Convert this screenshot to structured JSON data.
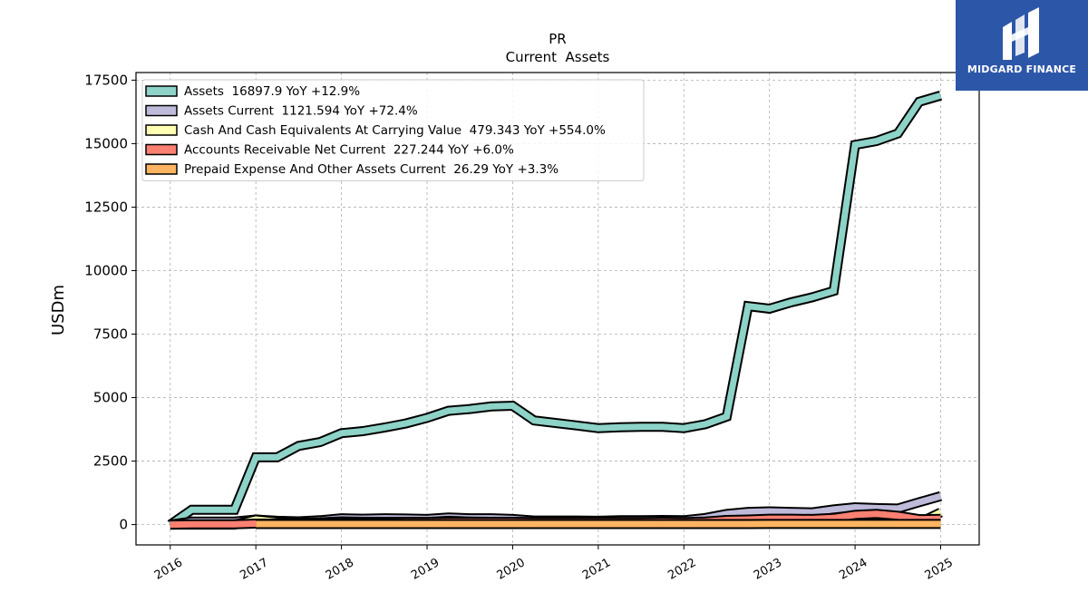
{
  "brand": {
    "name": "MIDGARD FINANCE",
    "bg_color": "#2c56a8"
  },
  "chart_data": {
    "type": "area",
    "title": "PR",
    "subtitle": "Current  Assets",
    "xlabel": "",
    "ylabel": "USDm",
    "ylim": [
      -800,
      17800
    ],
    "xlim": [
      2015.6,
      2025.45
    ],
    "yticks": [
      0,
      2500,
      5000,
      7500,
      10000,
      12500,
      15000,
      17500
    ],
    "xticks": [
      2016,
      2017,
      2018,
      2019,
      2020,
      2021,
      2022,
      2023,
      2024,
      2025
    ],
    "grid": true,
    "legend_position": "top-left",
    "series": [
      {
        "name": "Assets  16897.9 YoY +12.9%",
        "color": "#8dd3c7",
        "points": [
          [
            2016.0,
            0
          ],
          [
            2016.25,
            580
          ],
          [
            2016.5,
            580
          ],
          [
            2016.75,
            580
          ],
          [
            2017.0,
            2650
          ],
          [
            2017.25,
            2650
          ],
          [
            2017.5,
            3100
          ],
          [
            2017.75,
            3250
          ],
          [
            2018.0,
            3600
          ],
          [
            2018.25,
            3680
          ],
          [
            2018.5,
            3820
          ],
          [
            2018.75,
            3980
          ],
          [
            2019.0,
            4200
          ],
          [
            2019.25,
            4480
          ],
          [
            2019.5,
            4550
          ],
          [
            2019.75,
            4650
          ],
          [
            2020.0,
            4680
          ],
          [
            2020.25,
            4100
          ],
          [
            2020.5,
            4000
          ],
          [
            2020.75,
            3900
          ],
          [
            2021.0,
            3800
          ],
          [
            2021.25,
            3830
          ],
          [
            2021.5,
            3850
          ],
          [
            2021.75,
            3850
          ],
          [
            2022.0,
            3800
          ],
          [
            2022.25,
            3950
          ],
          [
            2022.5,
            4250
          ],
          [
            2022.75,
            8600
          ],
          [
            2023.0,
            8500
          ],
          [
            2023.25,
            8750
          ],
          [
            2023.5,
            8950
          ],
          [
            2023.75,
            9200
          ],
          [
            2024.0,
            14950
          ],
          [
            2024.25,
            15100
          ],
          [
            2024.5,
            15400
          ],
          [
            2024.75,
            16650
          ],
          [
            2025.0,
            16897.9
          ]
        ]
      },
      {
        "name": "Assets Current  1121.594 YoY +72.4%",
        "color": "#bebada",
        "points": [
          [
            2016.0,
            0
          ],
          [
            2016.25,
            120
          ],
          [
            2016.5,
            120
          ],
          [
            2016.75,
            120
          ],
          [
            2017.0,
            200
          ],
          [
            2017.25,
            150
          ],
          [
            2017.5,
            130
          ],
          [
            2017.75,
            170
          ],
          [
            2018.0,
            250
          ],
          [
            2018.25,
            230
          ],
          [
            2018.5,
            250
          ],
          [
            2018.75,
            240
          ],
          [
            2019.0,
            220
          ],
          [
            2019.25,
            280
          ],
          [
            2019.5,
            250
          ],
          [
            2019.75,
            250
          ],
          [
            2020.0,
            220
          ],
          [
            2020.25,
            160
          ],
          [
            2020.5,
            160
          ],
          [
            2020.75,
            160
          ],
          [
            2021.0,
            150
          ],
          [
            2021.25,
            170
          ],
          [
            2021.5,
            170
          ],
          [
            2021.75,
            180
          ],
          [
            2022.0,
            170
          ],
          [
            2022.25,
            260
          ],
          [
            2022.5,
            420
          ],
          [
            2022.75,
            500
          ],
          [
            2023.0,
            520
          ],
          [
            2023.25,
            500
          ],
          [
            2023.5,
            480
          ],
          [
            2023.75,
            600
          ],
          [
            2024.0,
            680
          ],
          [
            2024.25,
            650
          ],
          [
            2024.5,
            630
          ],
          [
            2024.75,
            880
          ],
          [
            2025.0,
            1121.594
          ]
        ]
      },
      {
        "name": "Cash And Cash Equivalents At Carrying Value  479.343 YoY +554.0%",
        "color": "#ffffb3",
        "points": [
          [
            2016.0,
            0
          ],
          [
            2016.25,
            0
          ],
          [
            2016.5,
            0
          ],
          [
            2016.75,
            0
          ],
          [
            2017.0,
            200
          ],
          [
            2017.25,
            110
          ],
          [
            2017.5,
            70
          ],
          [
            2017.75,
            90
          ],
          [
            2018.0,
            130
          ],
          [
            2018.25,
            110
          ],
          [
            2018.5,
            110
          ],
          [
            2018.75,
            110
          ],
          [
            2019.0,
            100
          ],
          [
            2019.25,
            150
          ],
          [
            2019.5,
            120
          ],
          [
            2019.75,
            110
          ],
          [
            2020.0,
            110
          ],
          [
            2020.25,
            60
          ],
          [
            2020.5,
            70
          ],
          [
            2020.75,
            60
          ],
          [
            2021.0,
            60
          ],
          [
            2021.25,
            70
          ],
          [
            2021.5,
            70
          ],
          [
            2021.75,
            80
          ],
          [
            2022.0,
            60
          ],
          [
            2022.25,
            100
          ],
          [
            2022.5,
            180
          ],
          [
            2022.75,
            150
          ],
          [
            2023.0,
            140
          ],
          [
            2023.25,
            120
          ],
          [
            2023.5,
            110
          ],
          [
            2023.75,
            100
          ],
          [
            2024.0,
            130
          ],
          [
            2024.25,
            120
          ],
          [
            2024.5,
            80
          ],
          [
            2024.75,
            73
          ],
          [
            2025.0,
            479.343
          ]
        ]
      },
      {
        "name": "Accounts Receivable Net Current  227.244 YoY +6.0%",
        "color": "#fb8072",
        "points": [
          [
            2016.0,
            0
          ],
          [
            2016.25,
            10
          ],
          [
            2016.5,
            10
          ],
          [
            2016.75,
            10
          ],
          [
            2017.0,
            40
          ],
          [
            2017.25,
            40
          ],
          [
            2017.5,
            60
          ],
          [
            2017.75,
            70
          ],
          [
            2018.0,
            80
          ],
          [
            2018.25,
            80
          ],
          [
            2018.5,
            90
          ],
          [
            2018.75,
            100
          ],
          [
            2019.0,
            100
          ],
          [
            2019.25,
            110
          ],
          [
            2019.5,
            110
          ],
          [
            2019.75,
            110
          ],
          [
            2020.0,
            110
          ],
          [
            2020.25,
            100
          ],
          [
            2020.5,
            100
          ],
          [
            2020.75,
            100
          ],
          [
            2021.0,
            100
          ],
          [
            2021.25,
            100
          ],
          [
            2021.5,
            100
          ],
          [
            2021.75,
            110
          ],
          [
            2022.0,
            100
          ],
          [
            2022.25,
            120
          ],
          [
            2022.5,
            180
          ],
          [
            2022.75,
            200
          ],
          [
            2023.0,
            230
          ],
          [
            2023.25,
            230
          ],
          [
            2023.5,
            220
          ],
          [
            2023.75,
            260
          ],
          [
            2024.0,
            380
          ],
          [
            2024.25,
            420
          ],
          [
            2024.5,
            350
          ],
          [
            2024.75,
            214
          ],
          [
            2025.0,
            227.244
          ]
        ]
      },
      {
        "name": "Prepaid Expense And Other Assets Current  26.29 YoY +3.3%",
        "color": "#fdb462",
        "points": [
          [
            2017.0,
            20
          ],
          [
            2017.25,
            20
          ],
          [
            2017.5,
            20
          ],
          [
            2017.75,
            20
          ],
          [
            2018.0,
            20
          ],
          [
            2018.25,
            20
          ],
          [
            2018.5,
            20
          ],
          [
            2018.75,
            20
          ],
          [
            2019.0,
            20
          ],
          [
            2019.25,
            20
          ],
          [
            2019.5,
            20
          ],
          [
            2019.75,
            20
          ],
          [
            2020.0,
            20
          ],
          [
            2020.25,
            20
          ],
          [
            2020.5,
            20
          ],
          [
            2020.75,
            20
          ],
          [
            2021.0,
            20
          ],
          [
            2021.25,
            20
          ],
          [
            2021.5,
            20
          ],
          [
            2021.75,
            20
          ],
          [
            2022.0,
            20
          ],
          [
            2022.25,
            20
          ],
          [
            2022.5,
            22
          ],
          [
            2022.75,
            22
          ],
          [
            2023.0,
            24
          ],
          [
            2023.25,
            24
          ],
          [
            2023.5,
            24
          ],
          [
            2023.75,
            24
          ],
          [
            2024.0,
            25
          ],
          [
            2024.25,
            25
          ],
          [
            2024.5,
            25
          ],
          [
            2024.75,
            25.4
          ],
          [
            2025.0,
            26.29
          ]
        ]
      }
    ]
  }
}
